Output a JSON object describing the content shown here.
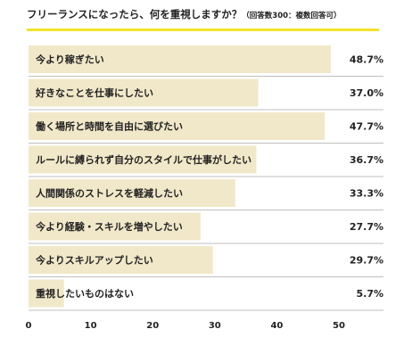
{
  "chart_data": {
    "type": "bar",
    "orientation": "horizontal",
    "title": "フリーランスになったら、何を重視しますか？",
    "subtitle": "（回答数300：複数回答可）",
    "categories": [
      "今より稼ぎたい",
      "好きなことを仕事にしたい",
      "働く場所と時間を自由に選びたい",
      "ルールに縛られず自分のスタイルで仕事がしたい",
      "人間関係のストレスを軽減したい",
      "今より経験・スキルを増やしたい",
      "今よりスキルアップしたい",
      "重視したいものはない"
    ],
    "values": [
      48.7,
      37.0,
      47.7,
      36.7,
      33.3,
      27.7,
      29.7,
      5.7
    ],
    "value_labels": [
      "48.7%",
      "37.0%",
      "47.7%",
      "36.7%",
      "33.3%",
      "27.7%",
      "29.7%",
      "5.7%"
    ],
    "xlim": [
      0,
      50
    ],
    "x_ticks": [
      "0",
      "10",
      "20",
      "30",
      "40",
      "50"
    ],
    "grid": false,
    "colors": {
      "bar": "#f1e8c9",
      "accent": "#f2e32a",
      "divider": "#bfbfbf"
    }
  }
}
